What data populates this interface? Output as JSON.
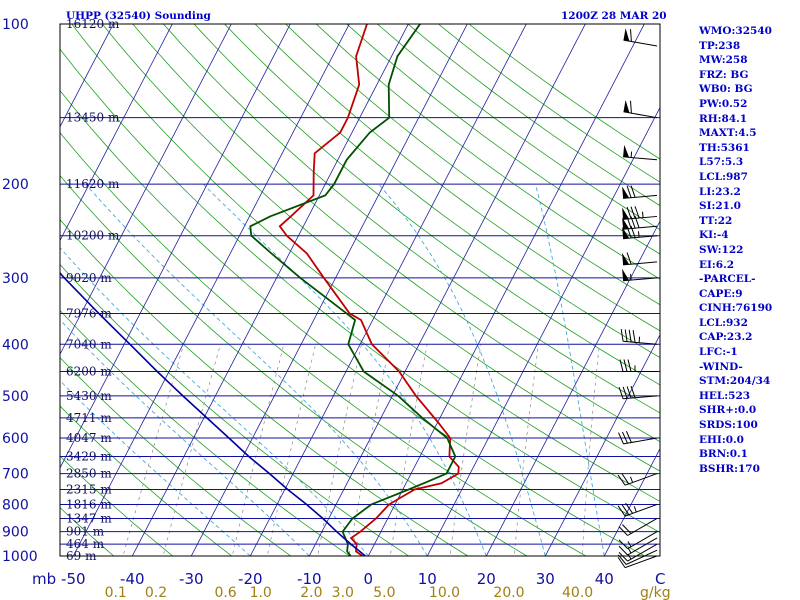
{
  "header": {
    "station": "UHPP (32540) Sounding",
    "time": "1200Z 28 MAR 20"
  },
  "sidebar": {
    "rows": [
      "WMO:32540",
      "TP:238",
      "MW:258",
      "FRZ: BG",
      "WB0: BG",
      "PW:0.52",
      "RH:84.1",
      "MAXT:4.5",
      "TH:5361",
      "L57:5.3",
      "LCL:987",
      "LI:23.2",
      "SI:21.0",
      "TT:22",
      "KI:-4",
      "SW:122",
      "EI:6.2",
      "-PARCEL-",
      "CAPE:9",
      "CINH:76190",
      "LCL:932",
      "CAP:23.2",
      "LFC:-1",
      "-WIND-",
      "STM:204/34",
      "HEL:523",
      "SHR+:0.0",
      "SRDS:100",
      "EHI:0.0",
      "BRN:0.1",
      "BSHR:170"
    ]
  },
  "chart_data": {
    "type": "skew-t",
    "x_axis": {
      "unit_label": "C",
      "ticks": [
        -50,
        -40,
        -30,
        -20,
        -10,
        0,
        10,
        20,
        30,
        40
      ],
      "tick_labels": [
        "-50",
        "-40",
        "-30",
        "-20",
        "-10",
        "0",
        "10",
        "20",
        "30",
        "40"
      ]
    },
    "y_axis": {
      "unit_label": "mb",
      "scale": "log",
      "ticks": [
        100,
        200,
        300,
        400,
        500,
        600,
        700,
        800,
        900,
        1000
      ],
      "tick_labels": [
        "100",
        "200",
        "300",
        "400",
        "500",
        "600",
        "700",
        "800",
        "900",
        "1000"
      ]
    },
    "mixing_ratio_labels": [
      "0.1",
      "0.2",
      "0.6",
      "1.0",
      "2.0",
      "3.0",
      "5.0",
      "10.0",
      "20.0",
      "40.0"
    ],
    "mixing_ratio_unit": "g/kg",
    "height_levels": [
      {
        "p": 100,
        "label": "16120 m"
      },
      {
        "p": 150,
        "label": "13450 m"
      },
      {
        "p": 200,
        "label": "11620 m"
      },
      {
        "p": 250,
        "label": "10200 m"
      },
      {
        "p": 300,
        "label": "9020 m"
      },
      {
        "p": 350,
        "label": "7976 m"
      },
      {
        "p": 400,
        "label": "7040 m"
      },
      {
        "p": 450,
        "label": "6200 m"
      },
      {
        "p": 500,
        "label": "5430 m"
      },
      {
        "p": 550,
        "label": "4711 m"
      },
      {
        "p": 600,
        "label": "4047 m"
      },
      {
        "p": 650,
        "label": "3429 m"
      },
      {
        "p": 700,
        "label": "2850 m"
      },
      {
        "p": 750,
        "label": "2315 m"
      },
      {
        "p": 800,
        "label": "1816 m"
      },
      {
        "p": 850,
        "label": "1347 m"
      },
      {
        "p": 900,
        "label": "901 m"
      },
      {
        "p": 950,
        "label": "464 m"
      },
      {
        "p": 1000,
        "label": "69 m"
      }
    ],
    "series": [
      {
        "name": "Temperature",
        "color": "#c00000",
        "points": [
          {
            "p": 1000,
            "t": -1.0
          },
          {
            "p": 980,
            "t": -2.5
          },
          {
            "p": 950,
            "t": -3.0
          },
          {
            "p": 925,
            "t": -4.5
          },
          {
            "p": 900,
            "t": -3.5
          },
          {
            "p": 850,
            "t": -2.0
          },
          {
            "p": 800,
            "t": -1.0
          },
          {
            "p": 750,
            "t": 2.0
          },
          {
            "p": 730,
            "t": 6.0
          },
          {
            "p": 700,
            "t": 8.0
          },
          {
            "p": 680,
            "t": 7.5
          },
          {
            "p": 650,
            "t": 5.0
          },
          {
            "p": 600,
            "t": 3.5
          },
          {
            "p": 560,
            "t": 0.0
          },
          {
            "p": 500,
            "t": -6.0
          },
          {
            "p": 450,
            "t": -11.0
          },
          {
            "p": 400,
            "t": -18.0
          },
          {
            "p": 360,
            "t": -22.0
          },
          {
            "p": 350,
            "t": -24.5
          },
          {
            "p": 300,
            "t": -32.0
          },
          {
            "p": 270,
            "t": -37.0
          },
          {
            "p": 250,
            "t": -42.0
          },
          {
            "p": 240,
            "t": -44.0
          },
          {
            "p": 230,
            "t": -43.0
          },
          {
            "p": 210,
            "t": -41.0
          },
          {
            "p": 190,
            "t": -43.0
          },
          {
            "p": 175,
            "t": -44.5
          },
          {
            "p": 160,
            "t": -42.0
          },
          {
            "p": 150,
            "t": -42.0
          },
          {
            "p": 130,
            "t": -43.0
          },
          {
            "p": 115,
            "t": -46.0
          },
          {
            "p": 100,
            "t": -47.0
          }
        ]
      },
      {
        "name": "Dewpoint",
        "color": "#005000",
        "points": [
          {
            "p": 1000,
            "t": -3.0
          },
          {
            "p": 980,
            "t": -4.0
          },
          {
            "p": 950,
            "t": -4.5
          },
          {
            "p": 900,
            "t": -6.5
          },
          {
            "p": 850,
            "t": -6.0
          },
          {
            "p": 800,
            "t": -4.0
          },
          {
            "p": 750,
            "t": 1.0
          },
          {
            "p": 725,
            "t": 3.5
          },
          {
            "p": 700,
            "t": 6.0
          },
          {
            "p": 650,
            "t": 6.0
          },
          {
            "p": 600,
            "t": 3.0
          },
          {
            "p": 550,
            "t": -3.0
          },
          {
            "p": 500,
            "t": -9.0
          },
          {
            "p": 450,
            "t": -17.0
          },
          {
            "p": 400,
            "t": -22.0
          },
          {
            "p": 360,
            "t": -23.0
          },
          {
            "p": 350,
            "t": -25.0
          },
          {
            "p": 300,
            "t": -36.0
          },
          {
            "p": 270,
            "t": -43.0
          },
          {
            "p": 250,
            "t": -48.0
          },
          {
            "p": 240,
            "t": -49.0
          },
          {
            "p": 230,
            "t": -46.5
          },
          {
            "p": 210,
            "t": -39.0
          },
          {
            "p": 200,
            "t": -38.5
          },
          {
            "p": 180,
            "t": -38.5
          },
          {
            "p": 160,
            "t": -37.0
          },
          {
            "p": 150,
            "t": -35.0
          },
          {
            "p": 130,
            "t": -38.0
          },
          {
            "p": 115,
            "t": -39.0
          },
          {
            "p": 100,
            "t": -38.0
          }
        ]
      },
      {
        "name": "Parcel",
        "color": "#0000a0",
        "points": [
          {
            "p": 1000,
            "t": -0.5
          },
          {
            "p": 950,
            "t": -4.0
          },
          {
            "p": 900,
            "t": -7.5
          },
          {
            "p": 850,
            "t": -11.0
          },
          {
            "p": 800,
            "t": -15.0
          },
          {
            "p": 750,
            "t": -19.5
          },
          {
            "p": 700,
            "t": -24.0
          },
          {
            "p": 650,
            "t": -29.0
          },
          {
            "p": 600,
            "t": -34.0
          },
          {
            "p": 550,
            "t": -39.5
          },
          {
            "p": 500,
            "t": -45.5
          },
          {
            "p": 450,
            "t": -52.0
          },
          {
            "p": 400,
            "t": -59.0
          },
          {
            "p": 350,
            "t": -67.0
          },
          {
            "p": 300,
            "t": -76.0
          },
          {
            "p": 250,
            "t": -86.0
          },
          {
            "p": 200,
            "t": -98.0
          },
          {
            "p": 150,
            "t": -114.0
          },
          {
            "p": 120,
            "t": -126.0
          }
        ]
      }
    ],
    "wind_barbs": [
      {
        "p": 1000,
        "dir": 250,
        "spd": 10
      },
      {
        "p": 975,
        "dir": 245,
        "spd": 10
      },
      {
        "p": 950,
        "dir": 240,
        "spd": 15
      },
      {
        "p": 925,
        "dir": 240,
        "spd": 15
      },
      {
        "p": 900,
        "dir": 240,
        "spd": 15
      },
      {
        "p": 850,
        "dir": 240,
        "spd": 20
      },
      {
        "p": 800,
        "dir": 250,
        "spd": 35
      },
      {
        "p": 700,
        "dir": 250,
        "spd": 25
      },
      {
        "p": 600,
        "dir": 260,
        "spd": 30
      },
      {
        "p": 500,
        "dir": 265,
        "spd": 40
      },
      {
        "p": 450,
        "dir": 270,
        "spd": 35
      },
      {
        "p": 400,
        "dir": 275,
        "spd": 45
      },
      {
        "p": 300,
        "dir": 265,
        "spd": 55
      },
      {
        "p": 280,
        "dir": 265,
        "spd": 60
      },
      {
        "p": 250,
        "dir": 265,
        "spd": 75
      },
      {
        "p": 240,
        "dir": 265,
        "spd": 80
      },
      {
        "p": 230,
        "dir": 265,
        "spd": 85
      },
      {
        "p": 210,
        "dir": 265,
        "spd": 70
      },
      {
        "p": 180,
        "dir": 275,
        "spd": 55
      },
      {
        "p": 150,
        "dir": 280,
        "spd": 60
      },
      {
        "p": 110,
        "dir": 280,
        "spd": 60
      }
    ]
  }
}
